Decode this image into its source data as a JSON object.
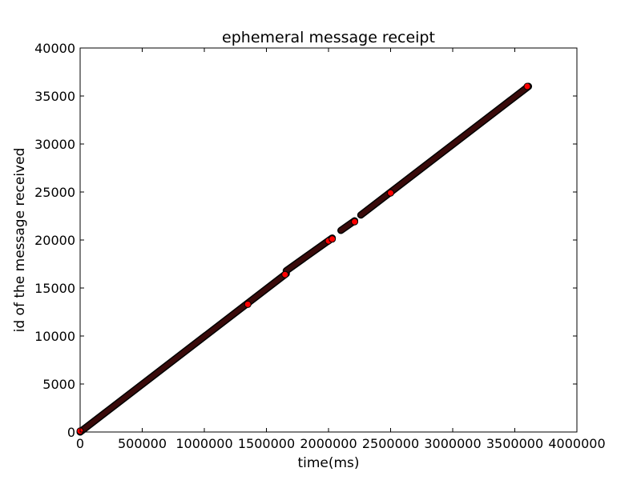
{
  "chart_data": {
    "type": "scatter",
    "title": "ephemeral message receipt",
    "xlabel": "time(ms)",
    "ylabel": "id of the message received",
    "xlim": [
      0,
      4000000
    ],
    "ylim": [
      0,
      40000
    ],
    "xticks": [
      0,
      500000,
      1000000,
      1500000,
      2000000,
      2500000,
      3000000,
      3500000,
      4000000
    ],
    "yticks": [
      0,
      5000,
      10000,
      15000,
      20000,
      25000,
      30000,
      35000,
      40000
    ],
    "xtick_labels": [
      "0",
      "500000",
      "1000000",
      "1500000",
      "2000000",
      "2500000",
      "3000000",
      "3500000",
      "4000000"
    ],
    "ytick_labels": [
      "0",
      "5000",
      "10000",
      "15000",
      "20000",
      "25000",
      "30000",
      "35000",
      "40000"
    ],
    "grid": false,
    "marker_color": "#ff0000",
    "marker_edge_color": "#000000",
    "segments": [
      {
        "x": [
          0,
          1660000
        ],
        "y": [
          0,
          16500
        ]
      },
      {
        "x": [
          1660000,
          2030000
        ],
        "y": [
          16800,
          20200
        ]
      },
      {
        "x": [
          2100000,
          2210000
        ],
        "y": [
          21000,
          22000
        ]
      },
      {
        "x": [
          2260000,
          3610000
        ],
        "y": [
          22600,
          36000
        ]
      }
    ],
    "points": [
      {
        "x": 0,
        "y": 100
      },
      {
        "x": 1350000,
        "y": 13300
      },
      {
        "x": 1650000,
        "y": 16400
      },
      {
        "x": 2000000,
        "y": 19900
      },
      {
        "x": 2030000,
        "y": 20100
      },
      {
        "x": 2210000,
        "y": 21900
      },
      {
        "x": 2500000,
        "y": 24900
      },
      {
        "x": 3600000,
        "y": 36000
      }
    ]
  }
}
